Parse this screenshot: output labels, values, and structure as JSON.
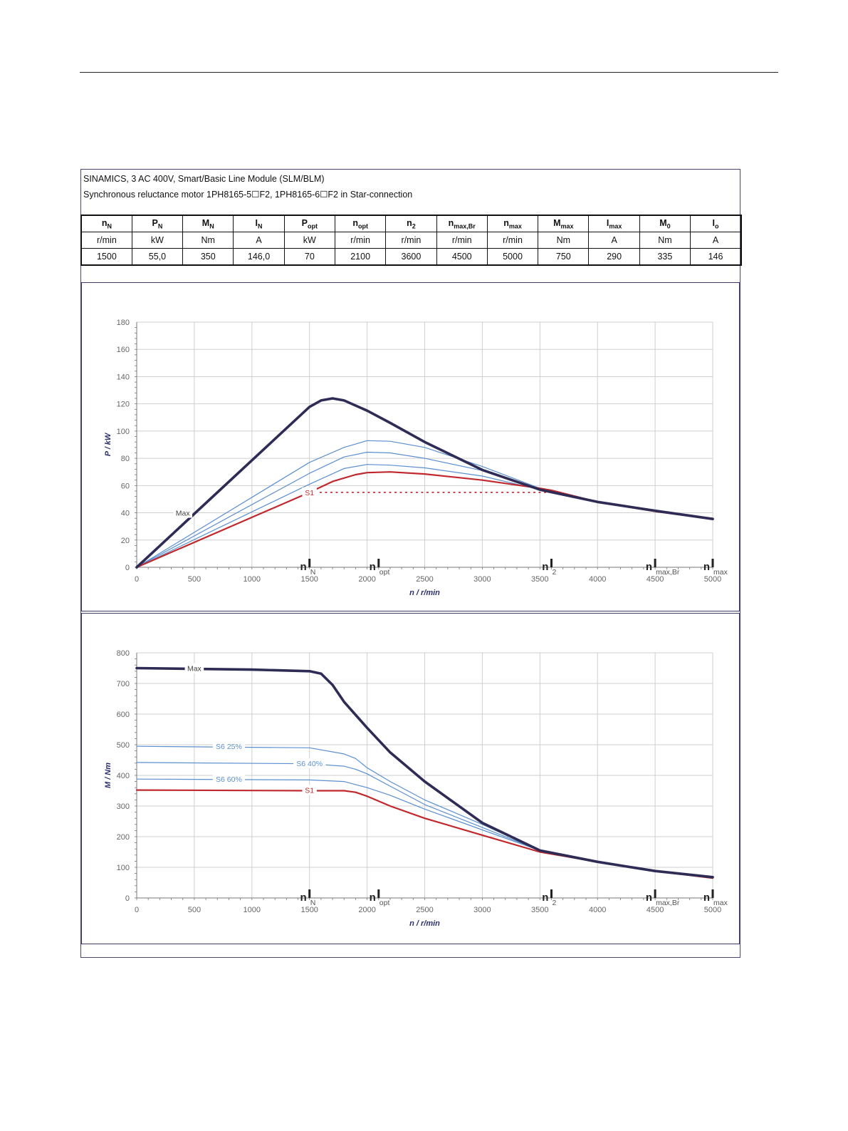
{
  "header": {
    "line1": "SINAMICS, 3 AC 400V, Smart/Basic Line Module (SLM/BLM)",
    "line2": "Synchronous reluctance motor  1PH8165-5☐F2,  1PH8165-6☐F2   in Star-connection"
  },
  "table": {
    "columns": [
      {
        "sym": "n",
        "sub": "N",
        "unit": "r/min",
        "value": "1500"
      },
      {
        "sym": "P",
        "sub": "N",
        "unit": "kW",
        "value": "55,0"
      },
      {
        "sym": "M",
        "sub": "N",
        "unit": "Nm",
        "value": "350"
      },
      {
        "sym": "I",
        "sub": "N",
        "unit": "A",
        "value": "146,0"
      },
      {
        "sym": "P",
        "sub": "opt",
        "unit": "kW",
        "value": "70"
      },
      {
        "sym": "n",
        "sub": "opt",
        "unit": "r/min",
        "value": "2100"
      },
      {
        "sym": "n",
        "sub": "2",
        "unit": "r/min",
        "value": "3600"
      },
      {
        "sym": "n",
        "sub": "max,Br",
        "unit": "r/min",
        "value": "4500"
      },
      {
        "sym": "n",
        "sub": "max",
        "unit": "r/min",
        "value": "5000"
      },
      {
        "sym": "M",
        "sub": "max",
        "unit": "Nm",
        "value": "750"
      },
      {
        "sym": "I",
        "sub": "max",
        "unit": "A",
        "value": "290"
      },
      {
        "sym": "M",
        "sub": "0",
        "unit": "Nm",
        "value": "335"
      },
      {
        "sym": "I",
        "sub": "o",
        "unit": "A",
        "value": "146"
      }
    ]
  },
  "colors": {
    "max": "#2e2b55",
    "s6": "#5b8fd0",
    "s1": "#c0282d",
    "axis_label": "#2b2f6e",
    "grid": "#cfcfcf"
  },
  "chart_data": [
    {
      "type": "line",
      "title": "",
      "xlabel": "n / r/min",
      "ylabel": "P / kW",
      "xlim": [
        0,
        5000
      ],
      "ylim": [
        0,
        180
      ],
      "xticks": [
        "0",
        "500",
        "1000",
        "1500",
        "2000",
        "2500",
        "3000",
        "3500",
        "4000",
        "4500",
        "5000"
      ],
      "yticks": [
        "0",
        "20",
        "40",
        "60",
        "80",
        "100",
        "120",
        "140",
        "160",
        "180"
      ],
      "markers": [
        {
          "x": 1500,
          "sym": "n",
          "sub": "N"
        },
        {
          "x": 2100,
          "sym": "n",
          "sub": "opt"
        },
        {
          "x": 3600,
          "sym": "n",
          "sub": "2"
        },
        {
          "x": 4500,
          "sym": "n",
          "sub": "max,Br"
        },
        {
          "x": 5000,
          "sym": "n",
          "sub": "max"
        }
      ],
      "series": [
        {
          "name": "Max",
          "role": "max",
          "label": "Max",
          "label_at": [
            400,
            40
          ],
          "x": [
            0,
            1500,
            1600,
            1700,
            1800,
            2000,
            2200,
            2500,
            3000,
            3500,
            4000,
            4500,
            5000
          ],
          "y": [
            0,
            117.8,
            122.5,
            124,
            122.5,
            115,
            106,
            92,
            71.5,
            57,
            48,
            41.5,
            35.5
          ]
        },
        {
          "name": "S6 25%",
          "role": "s6",
          "label": "",
          "x": [
            0,
            1500,
            1800,
            2000,
            2200,
            2500,
            3000,
            3500,
            4000,
            4500,
            5000
          ],
          "y": [
            0,
            77,
            88,
            93,
            92.5,
            88,
            74,
            58,
            48,
            41.5,
            36
          ]
        },
        {
          "name": "S6 40%",
          "role": "s6",
          "label": "",
          "x": [
            0,
            1500,
            1800,
            2000,
            2200,
            2500,
            3000,
            3500,
            4000,
            4500,
            5000
          ],
          "y": [
            0,
            69,
            81,
            84.5,
            84,
            80,
            71,
            57,
            48,
            41.5,
            36
          ]
        },
        {
          "name": "S6 60%",
          "role": "s6",
          "label": "",
          "x": [
            0,
            1500,
            1800,
            2000,
            2200,
            2500,
            3000,
            3500,
            4000,
            4500,
            5000
          ],
          "y": [
            0,
            61,
            72.5,
            75.5,
            75,
            73,
            67,
            57,
            48,
            41.5,
            36
          ]
        },
        {
          "name": "S1",
          "role": "s1",
          "label": "S1",
          "label_at": [
            1500,
            55
          ],
          "x": [
            0,
            1500,
            1700,
            1900,
            2000,
            2200,
            2500,
            3000,
            3500,
            3600,
            4000,
            4500,
            5000
          ],
          "y": [
            0,
            55,
            63,
            68,
            69.5,
            70,
            68.5,
            64,
            58,
            56.5,
            48,
            41,
            35.5
          ]
        }
      ],
      "reference_line": {
        "role": "s1",
        "from_x": 1500,
        "to_x": 3600,
        "y": 55
      }
    },
    {
      "type": "line",
      "title": "",
      "xlabel": "n / r/min",
      "ylabel": "M / Nm",
      "xlim": [
        0,
        5000
      ],
      "ylim": [
        0,
        800
      ],
      "xticks": [
        "0",
        "500",
        "1000",
        "1500",
        "2000",
        "2500",
        "3000",
        "3500",
        "4000",
        "4500",
        "5000"
      ],
      "yticks": [
        "0",
        "100",
        "200",
        "300",
        "400",
        "500",
        "600",
        "700",
        "800"
      ],
      "markers": [
        {
          "x": 1500,
          "sym": "n",
          "sub": "N"
        },
        {
          "x": 2100,
          "sym": "n",
          "sub": "opt"
        },
        {
          "x": 3600,
          "sym": "n",
          "sub": "2"
        },
        {
          "x": 4500,
          "sym": "n",
          "sub": "max,Br"
        },
        {
          "x": 5000,
          "sym": "n",
          "sub": "max"
        }
      ],
      "series": [
        {
          "name": "Max",
          "role": "max",
          "label": "Max",
          "label_at": [
            500,
            750
          ],
          "x": [
            0,
            1000,
            1500,
            1600,
            1700,
            1800,
            2000,
            2200,
            2500,
            3000,
            3500,
            4000,
            4500,
            5000
          ],
          "y": [
            750,
            745,
            740,
            732,
            695,
            640,
            555,
            475,
            380,
            245,
            155,
            118,
            88,
            68
          ]
        },
        {
          "name": "S6 25%",
          "role": "s6",
          "label": "S6 25%",
          "label_at": [
            800,
            495
          ],
          "x": [
            0,
            1500,
            1800,
            1900,
            2000,
            2200,
            2500,
            3000,
            3500,
            4000,
            4500,
            5000
          ],
          "y": [
            495,
            490,
            470,
            455,
            425,
            380,
            320,
            240,
            155,
            118,
            88,
            68
          ]
        },
        {
          "name": "S6 40%",
          "role": "s6",
          "label": "S6 40%",
          "label_at": [
            1500,
            440
          ],
          "x": [
            0,
            1500,
            1800,
            1900,
            2000,
            2200,
            2500,
            3000,
            3500,
            4000,
            4500,
            5000
          ],
          "y": [
            442,
            438,
            430,
            420,
            405,
            365,
            305,
            230,
            155,
            118,
            88,
            68
          ]
        },
        {
          "name": "S6 60%",
          "role": "s6",
          "label": "S6 60%",
          "label_at": [
            800,
            388
          ],
          "x": [
            0,
            1500,
            1800,
            1900,
            2000,
            2200,
            2500,
            3000,
            3500,
            4000,
            4500,
            5000
          ],
          "y": [
            388,
            385,
            380,
            370,
            360,
            335,
            290,
            222,
            155,
            118,
            88,
            68
          ]
        },
        {
          "name": "S1",
          "role": "s1",
          "label": "S1",
          "label_at": [
            1500,
            352
          ],
          "x": [
            0,
            1500,
            1800,
            1900,
            2000,
            2200,
            2500,
            3000,
            3500,
            4000,
            4500,
            5000
          ],
          "y": [
            352,
            350,
            350,
            345,
            332,
            300,
            260,
            205,
            150,
            118,
            88,
            65
          ]
        }
      ]
    }
  ]
}
